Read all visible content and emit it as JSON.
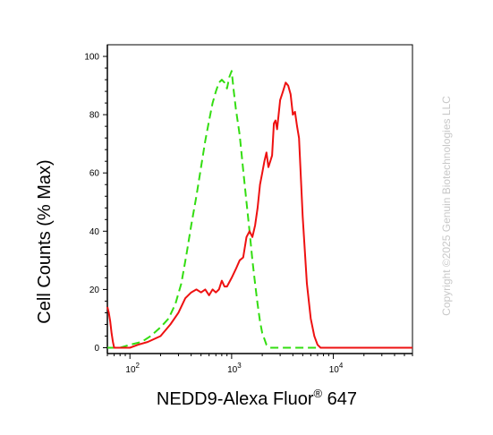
{
  "chart_data": {
    "type": "line",
    "title": "",
    "xlabel": "NEDD9-Alexa Fluor",
    "xlabel_superscript": "®",
    "xlabel_suffix": " 647",
    "ylabel": "Cell Counts (% Max)",
    "x_scale": "log",
    "xlim": [
      60,
      60000
    ],
    "ylim": [
      -2,
      104
    ],
    "y_ticks": [
      0,
      20,
      40,
      60,
      80,
      100
    ],
    "y_tick_labels": [
      "0",
      "20",
      "40",
      "60",
      "80",
      "100"
    ],
    "x_ticks": [
      100,
      1000,
      10000
    ],
    "x_tick_labels": [
      "10",
      "10",
      "10"
    ],
    "x_tick_exponents": [
      "2",
      "3",
      "4"
    ],
    "grid": false,
    "legend": "none",
    "series": [
      {
        "color": "#33dd11",
        "style": "dashed",
        "x": [
          60,
          70,
          80,
          100,
          130,
          160,
          200,
          240,
          280,
          320,
          360,
          400,
          450,
          500,
          550,
          600,
          650,
          700,
          750,
          800,
          850,
          900,
          950,
          1000,
          1050,
          1100,
          1200,
          1300,
          1400,
          1500,
          1600,
          1700,
          1800,
          1900,
          2000,
          2100,
          2200,
          2400,
          2600,
          3000,
          4000,
          10000,
          60000
        ],
        "y": [
          0,
          0,
          0,
          1,
          2,
          4,
          7,
          10,
          15,
          22,
          32,
          42,
          52,
          62,
          71,
          78,
          84,
          88,
          91,
          92,
          91,
          89,
          93,
          95,
          88,
          82,
          73,
          61,
          50,
          40,
          30,
          22,
          15,
          9,
          5,
          3,
          1,
          0,
          0,
          0,
          0,
          0,
          0
        ]
      },
      {
        "color": "#ee1111",
        "style": "solid",
        "x": [
          60,
          62,
          64,
          66,
          68,
          70,
          72,
          75,
          80,
          90,
          100,
          120,
          150,
          200,
          250,
          300,
          350,
          400,
          450,
          500,
          550,
          600,
          650,
          700,
          750,
          800,
          850,
          900,
          1000,
          1100,
          1200,
          1300,
          1400,
          1500,
          1600,
          1700,
          1800,
          1900,
          2000,
          2100,
          2200,
          2300,
          2400,
          2500,
          2600,
          2700,
          2800,
          3000,
          3200,
          3400,
          3600,
          3800,
          4000,
          4200,
          4400,
          4600,
          5000,
          5500,
          6000,
          6500,
          7000,
          7500,
          8000,
          9000,
          10000,
          15000,
          60000
        ],
        "y": [
          14,
          12,
          9,
          5,
          2,
          0,
          0,
          0,
          0,
          0,
          0,
          1,
          2,
          4,
          8,
          12,
          17,
          19,
          20,
          19,
          20,
          18,
          20,
          19,
          20,
          23,
          21,
          21,
          24,
          27,
          30,
          31,
          38,
          40,
          38,
          42,
          48,
          56,
          60,
          64,
          67,
          62,
          64,
          66,
          77,
          78,
          75,
          85,
          88,
          91,
          90,
          87,
          80,
          81,
          76,
          72,
          45,
          22,
          10,
          4,
          1,
          0,
          0,
          0,
          0,
          0,
          0
        ]
      }
    ]
  },
  "watermark": "Copyright ©2025 Genuin Biotechnologies LLC"
}
